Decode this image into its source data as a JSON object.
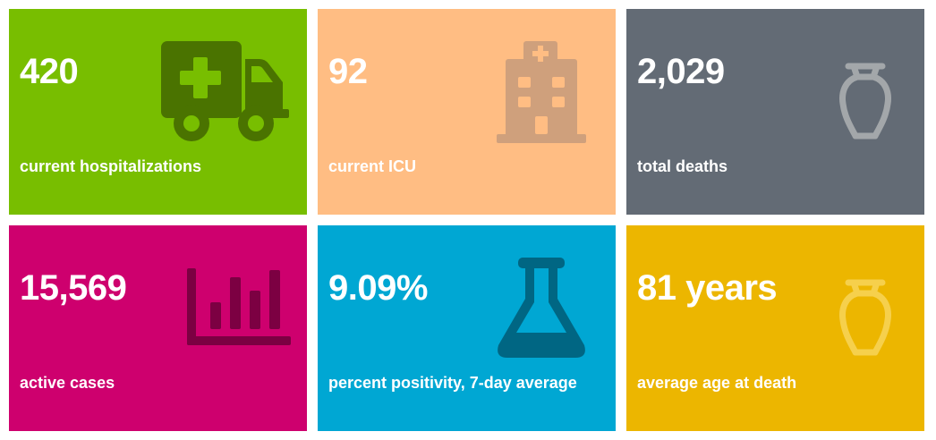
{
  "tiles": [
    {
      "value": "420",
      "label": "current hospitalizations",
      "icon": "ambulance-icon",
      "background": "#78BE00",
      "icon_color": "#4A7300"
    },
    {
      "value": "92",
      "label": "current ICU",
      "icon": "hospital-building-icon",
      "background": "#FFBD83",
      "icon_color": "#CFA07C"
    },
    {
      "value": "2,029",
      "label": "total deaths",
      "icon": "urn-icon",
      "background": "#636B75",
      "icon_color": "#A3A7AA"
    },
    {
      "value": "15,569",
      "label": "active cases",
      "icon": "bar-chart-icon",
      "background": "#CE006E",
      "icon_color": "#7C0042"
    },
    {
      "value": "9.09%",
      "label": "percent positivity, 7-day average",
      "icon": "flask-icon",
      "background": "#00A7D3",
      "icon_color": "#006683"
    },
    {
      "value": "81 years",
      "label": "average age at death",
      "icon": "urn-icon",
      "background": "#ECB600",
      "icon_color": "#F6D04C"
    }
  ]
}
